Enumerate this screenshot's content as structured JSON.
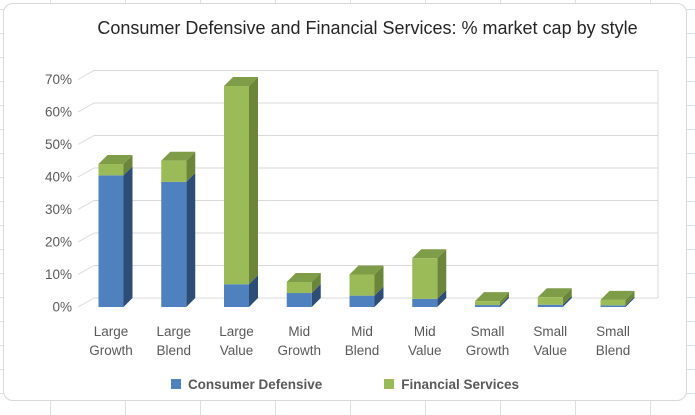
{
  "chart_data": {
    "type": "bar",
    "stacked": true,
    "projection": "3d",
    "title": "Consumer Defensive and Financial Services: % market cap by style",
    "categories": [
      "Large Growth",
      "Large Blend",
      "Large Value",
      "Mid Growth",
      "Mid Blend",
      "Mid Value",
      "Small Growth",
      "Small Value",
      "Small Blend"
    ],
    "series": [
      {
        "name": "Consumer Defensive",
        "color": "#4E81BD",
        "color_side": "#2D4D77",
        "color_top": "#6F94C4",
        "values": [
          40.5,
          38.5,
          7.0,
          4.3,
          3.5,
          2.5,
          0.6,
          0.7,
          0.5
        ]
      },
      {
        "name": "Financial Services",
        "color": "#9BBB59",
        "color_side": "#6B8639",
        "color_top": "#7F9C48",
        "values": [
          3.5,
          6.5,
          61.0,
          3.4,
          6.5,
          12.5,
          1.2,
          2.3,
          1.7
        ]
      }
    ],
    "ylabel": "",
    "xlabel": "",
    "ylim": [
      0,
      70
    ],
    "y_ticks": [
      "0%",
      "10%",
      "20%",
      "30%",
      "40%",
      "50%",
      "60%",
      "70%"
    ],
    "grid": true,
    "legend_position": "bottom",
    "colors": {
      "gridline": "#d9d9d9",
      "axis_text": "#595959",
      "title_text": "#262626",
      "chart_border": "#d9d9d9"
    }
  }
}
